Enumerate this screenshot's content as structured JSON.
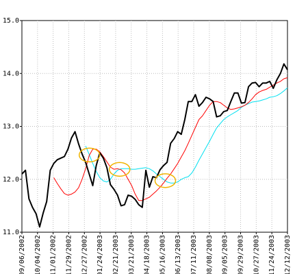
{
  "chart_data": {
    "type": "line",
    "title": "",
    "xlabel": "",
    "ylabel": "",
    "ylim": [
      11.0,
      15.0
    ],
    "grid": true,
    "legend": "none",
    "y_ticks": [
      "11.0",
      "12.0",
      "13.0",
      "14.0",
      "15.0"
    ],
    "x_tick_labels": [
      "09/06/2002",
      "10/04/2002",
      "11/01/2002",
      "11/29/2002",
      "12/27/2002",
      "01/24/2003",
      "02/21/2003",
      "03/21/2003",
      "04/18/2003",
      "05/16/2003",
      "06/13/2003",
      "07/11/2003",
      "08/08/2003",
      "09/05/2003",
      "09/29/2003",
      "10/27/2003",
      "11/24/2003",
      "12/12/2003"
    ],
    "colors": {
      "price": "#000000",
      "short_ma": "#ff0000",
      "long_ma": "#00e0f0",
      "highlight": "#f0b400",
      "grid": "#bbbbbb"
    },
    "series": [
      {
        "role": "price",
        "values": [
          12.1,
          12.17,
          11.63,
          11.47,
          11.35,
          11.1,
          11.36,
          11.58,
          12.17,
          12.3,
          12.37,
          12.4,
          12.43,
          12.57,
          12.78,
          12.9,
          12.67,
          12.48,
          12.32,
          12.1,
          11.88,
          12.26,
          12.5,
          12.4,
          12.22,
          11.9,
          11.81,
          11.7,
          11.5,
          11.52,
          11.7,
          11.68,
          11.62,
          11.52,
          11.47,
          12.17,
          11.85,
          12.05,
          12.03,
          12.18,
          12.26,
          12.32,
          12.68,
          12.77,
          12.9,
          12.85,
          13.13,
          13.47,
          13.47,
          13.6,
          13.38,
          13.45,
          13.55,
          13.52,
          13.47,
          13.18,
          13.2,
          13.28,
          13.3,
          13.47,
          13.63,
          13.63,
          13.44,
          13.45,
          13.75,
          13.82,
          13.83,
          13.75,
          13.82,
          13.82,
          13.85,
          13.72,
          13.88,
          14.0,
          14.18,
          14.07
        ]
      },
      {
        "role": "short_ma",
        "values": [
          12.03,
          11.92,
          11.82,
          11.73,
          11.7,
          11.72,
          11.76,
          11.84,
          12.0,
          12.2,
          12.45,
          12.57,
          12.57,
          12.52,
          12.43,
          12.33,
          12.23,
          12.19,
          12.2,
          12.18,
          12.12,
          12.0,
          11.88,
          11.72,
          11.6,
          11.6,
          11.63,
          11.66,
          11.72,
          11.78,
          11.85,
          11.93,
          12.02,
          12.1,
          12.2,
          12.3,
          12.42,
          12.54,
          12.68,
          12.83,
          12.98,
          13.13,
          13.2,
          13.3,
          13.4,
          13.47,
          13.47,
          13.45,
          13.4,
          13.35,
          13.32,
          13.33,
          13.35,
          13.37,
          13.4,
          13.45,
          13.52,
          13.6,
          13.65,
          13.68,
          13.7,
          13.74,
          13.78,
          13.82,
          13.85,
          13.9,
          13.92
        ]
      },
      {
        "role": "long_ma",
        "values": [
          12.63,
          12.47,
          12.3,
          12.15,
          12.03,
          11.97,
          11.95,
          12.0,
          12.1,
          12.17,
          12.2,
          12.2,
          12.2,
          12.19,
          12.19,
          12.2,
          12.21,
          12.22,
          12.2,
          12.16,
          12.1,
          12.05,
          12.0,
          11.95,
          11.93,
          11.93,
          11.95,
          12.0,
          12.03,
          12.05,
          12.12,
          12.23,
          12.36,
          12.48,
          12.6,
          12.72,
          12.85,
          12.97,
          13.05,
          13.13,
          13.18,
          13.22,
          13.26,
          13.3,
          13.36,
          13.4,
          13.43,
          13.46,
          13.47,
          13.48,
          13.5,
          13.52,
          13.55,
          13.56,
          13.58,
          13.62,
          13.67,
          13.73
        ]
      }
    ]
  }
}
